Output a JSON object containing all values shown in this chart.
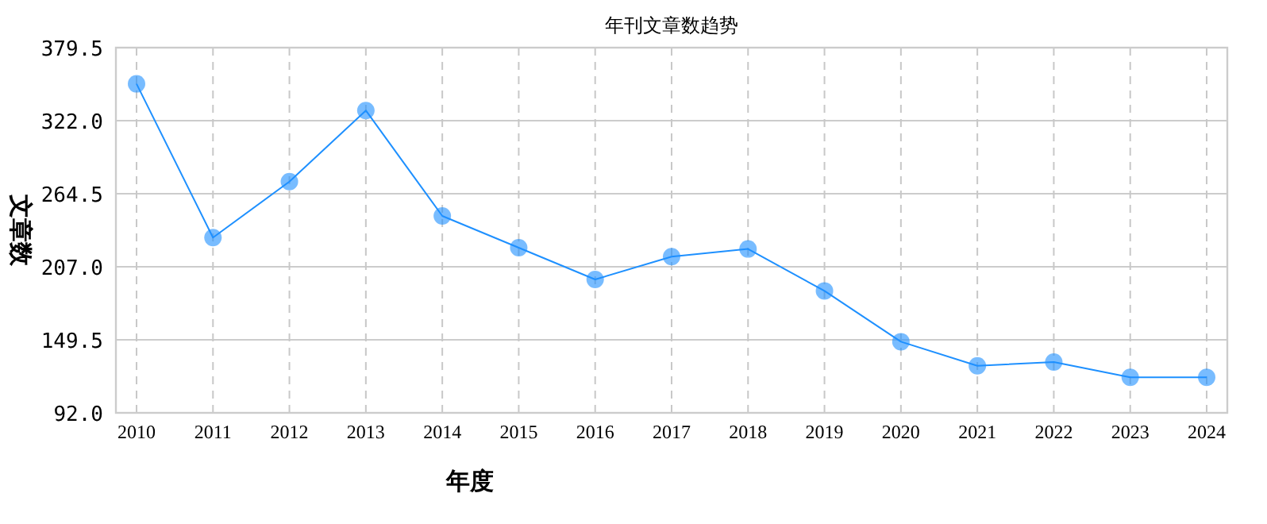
{
  "chart_data": {
    "type": "line",
    "title": "年刊文章数趋势",
    "xlabel": "年度",
    "ylabel": "文章数",
    "categories": [
      "2010",
      "2011",
      "2012",
      "2013",
      "2014",
      "2015",
      "2016",
      "2017",
      "2018",
      "2019",
      "2020",
      "2021",
      "2022",
      "2023",
      "2024"
    ],
    "series": [
      {
        "color": "#1e90ff",
        "values": [
          351,
          230,
          274,
          330,
          247,
          222,
          197,
          215,
          221,
          188,
          148,
          129,
          132,
          120,
          120
        ]
      }
    ],
    "ylim": [
      92,
      379.5
    ],
    "yticks": [
      {
        "value": 92,
        "label": "92.0"
      },
      149.5,
      {
        "value": 207,
        "label": "207.0"
      },
      264.5,
      {
        "value": 322,
        "label": "322.0"
      },
      379.5
    ],
    "grid": true,
    "marker": "circle"
  }
}
